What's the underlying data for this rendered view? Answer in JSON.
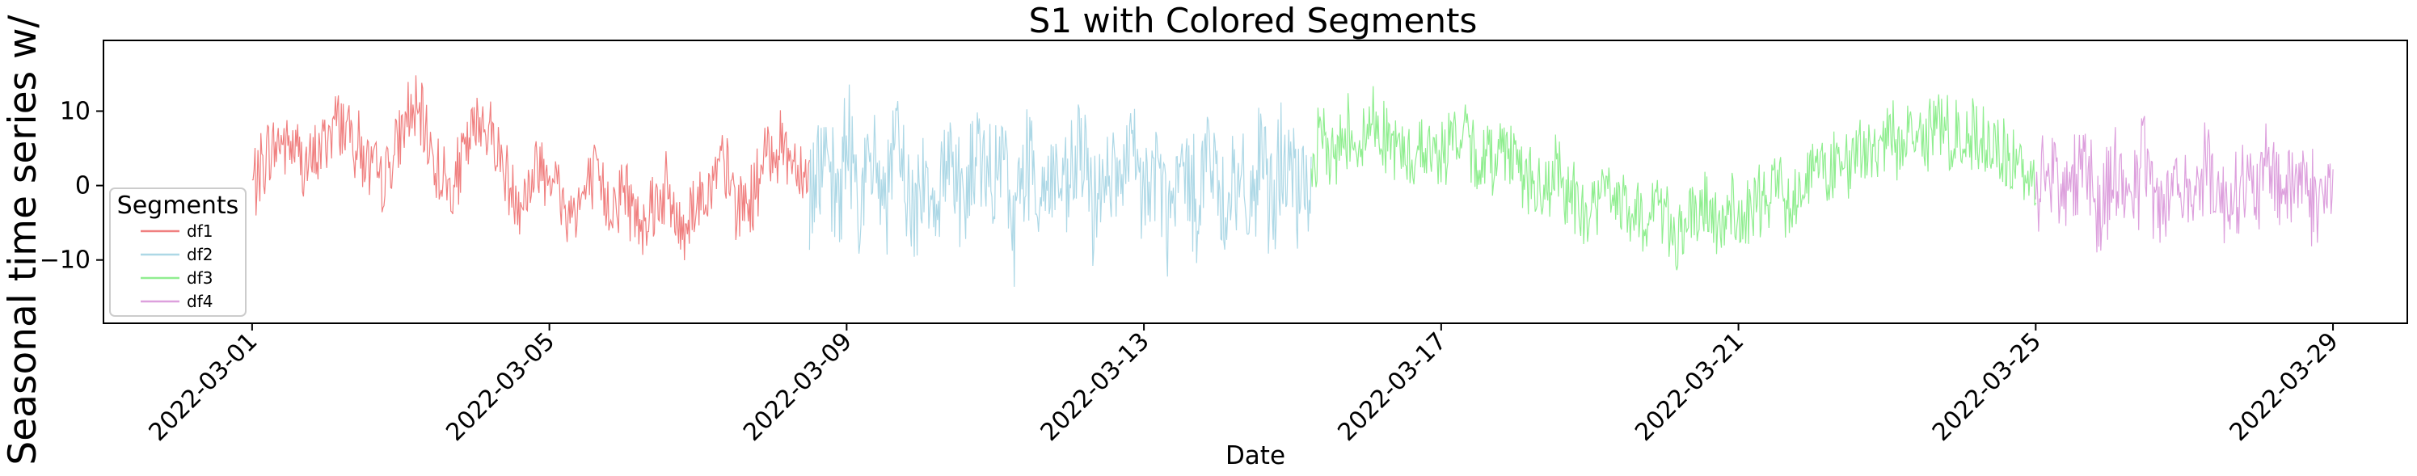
{
  "chart_data": {
    "type": "line",
    "title": "S1 with Colored Segments",
    "xlabel": "Date",
    "ylabel": "Seasonal time series w/ r",
    "x_ticks": [
      "2022-03-01",
      "2022-03-05",
      "2022-03-09",
      "2022-03-13",
      "2022-03-17",
      "2022-03-21",
      "2022-03-25",
      "2022-03-29"
    ],
    "y_ticks": [
      10,
      0,
      -10
    ],
    "y_tick_labels": [
      "10",
      "0",
      "−10"
    ],
    "xlim": [
      "2022-02-27",
      "2022-03-30"
    ],
    "ylim": [
      -18.5,
      19.5
    ],
    "grid": false,
    "legend": {
      "title": "Segments",
      "placement": "lower-left"
    },
    "series": [
      {
        "name": "df1",
        "color": "#f08080",
        "x_range": [
          "2022-03-01",
          "2022-03-08 12:00"
        ],
        "values": [
          0,
          4,
          6,
          5,
          2,
          6,
          9,
          7,
          3,
          0,
          4,
          10,
          8,
          2,
          -1,
          5,
          9,
          6,
          0,
          -2,
          3,
          2,
          -4,
          -2,
          1,
          -3,
          0,
          -5,
          -2,
          -1,
          -6,
          -2,
          -1,
          3,
          -3,
          -2,
          4,
          6,
          3,
          1
        ]
      },
      {
        "name": "df2",
        "color": "#add8e6",
        "x_range": [
          "2022-03-08 12:00",
          "2022-03-15 06:00"
        ],
        "values": [
          0,
          4,
          -3,
          6,
          -2,
          3,
          -1,
          5,
          -4,
          2,
          -2,
          6,
          -3,
          4,
          -1,
          3,
          -5,
          5,
          -2,
          2,
          -3,
          6,
          -4,
          3,
          -1,
          4,
          -2,
          3,
          -5,
          2,
          -2,
          5,
          -3,
          1,
          -4,
          3,
          -2,
          4,
          -3,
          1
        ]
      },
      {
        "name": "df3",
        "color": "#90ee90",
        "x_range": [
          "2022-03-15 06:00",
          "2022-03-25 00:00"
        ],
        "values": [
          3,
          6,
          4,
          8,
          5,
          9,
          7,
          5,
          3,
          6,
          4,
          5,
          7,
          5,
          3,
          4,
          6,
          3,
          0,
          -2,
          2,
          -1,
          -4,
          -3,
          0,
          -2,
          -4,
          -5,
          -2,
          -4,
          -7,
          -5,
          -3,
          -6,
          -3,
          -5,
          -4,
          -1,
          0,
          -2,
          1,
          3,
          1,
          4,
          2,
          5,
          4,
          7,
          5,
          8,
          6,
          9,
          7,
          5,
          8,
          6,
          4,
          3,
          2,
          1
        ]
      },
      {
        "name": "df4",
        "color": "#dda0dd",
        "x_range": [
          "2022-03-25 00:00",
          "2022-03-29 00:00"
        ],
        "values": [
          0,
          3,
          -2,
          4,
          -3,
          2,
          -1,
          3,
          -4,
          2,
          -2,
          4,
          -3,
          1,
          -2,
          3,
          -1,
          2,
          -3,
          1
        ]
      }
    ]
  }
}
